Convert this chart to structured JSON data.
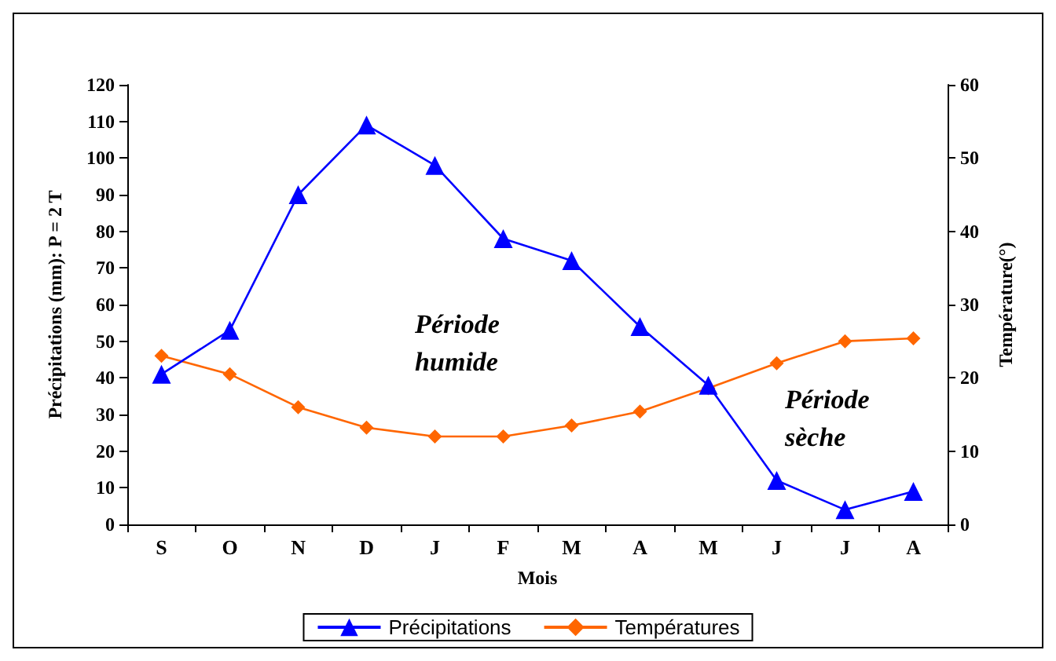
{
  "chart_data": {
    "type": "line",
    "xlabel": "Mois",
    "ylabel": "Précipitations (mm): P = 2 T",
    "y2label": "Température(°)",
    "categories": [
      "S",
      "O",
      "N",
      "D",
      "J",
      "F",
      "M",
      "A",
      "M",
      "J",
      "J",
      "A"
    ],
    "series": [
      {
        "name": "Précipitations",
        "color": "#0000ff",
        "marker": "triangle",
        "values": [
          41,
          53,
          90,
          109,
          98,
          78,
          72,
          54,
          38,
          12,
          4,
          9
        ]
      },
      {
        "name": "Températures",
        "color": "#ff6600",
        "marker": "diamond",
        "axis": "y2",
        "values": [
          23,
          20.5,
          16,
          13.2,
          12,
          12,
          13.5,
          15.4,
          18.6,
          22,
          25,
          25.4
        ]
      }
    ],
    "ylim": [
      0,
      120
    ],
    "yticks": [
      0,
      10,
      20,
      30,
      40,
      50,
      60,
      70,
      80,
      90,
      100,
      110,
      120
    ],
    "y2lim": [
      0,
      60
    ],
    "y2ticks": [
      0,
      10,
      20,
      30,
      40,
      50,
      60
    ],
    "annotations": [
      "Période humide",
      "Période sèche"
    ],
    "grid": false,
    "legend": "bottom"
  }
}
